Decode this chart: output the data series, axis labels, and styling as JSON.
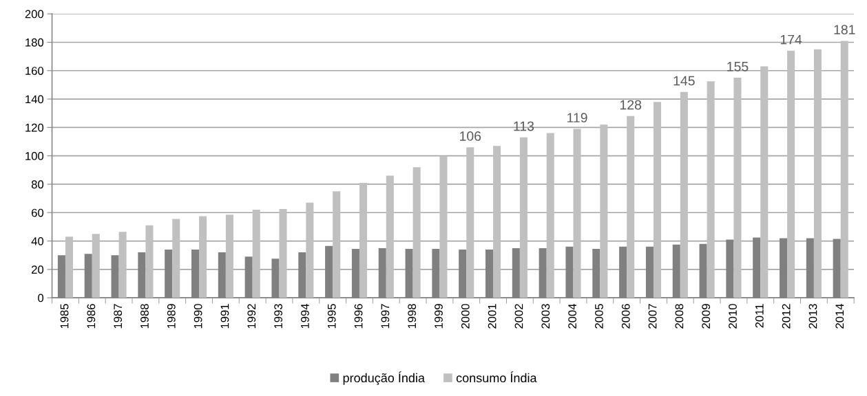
{
  "chart_data": {
    "type": "bar",
    "categories": [
      "1985",
      "1986",
      "1987",
      "1988",
      "1989",
      "1990",
      "1991",
      "1992",
      "1993",
      "1994",
      "1995",
      "1996",
      "1997",
      "1998",
      "1999",
      "2000",
      "2001",
      "2002",
      "2003",
      "2004",
      "2005",
      "2006",
      "2007",
      "2008",
      "2009",
      "2010",
      "2011",
      "2012",
      "2013",
      "2014"
    ],
    "series": [
      {
        "name": "produção Índia",
        "color": "#808080",
        "values": [
          30,
          31,
          30,
          32,
          34,
          34,
          32,
          29,
          27.5,
          32,
          36.5,
          34.5,
          35,
          34.5,
          34.5,
          34,
          34,
          35,
          35,
          36,
          34.5,
          36,
          36,
          37.5,
          38,
          41,
          42.5,
          42,
          42,
          41.5
        ]
      },
      {
        "name": "consumo Índia",
        "color": "#c0c0c0",
        "values": [
          43,
          45,
          46.5,
          51,
          55.5,
          57.5,
          58.5,
          62,
          62.5,
          67,
          75,
          81,
          86,
          92,
          100,
          106,
          107,
          113,
          116,
          119,
          122,
          128,
          138,
          145,
          152.5,
          155,
          163,
          174,
          175,
          181
        ],
        "value_labels": [
          null,
          null,
          null,
          null,
          null,
          null,
          null,
          null,
          null,
          null,
          null,
          null,
          null,
          null,
          null,
          "106",
          null,
          "113",
          null,
          "119",
          null,
          "128",
          null,
          "145",
          null,
          "155",
          null,
          "174",
          null,
          "181"
        ]
      }
    ],
    "ylim": [
      0,
      200
    ],
    "yticks": [
      0,
      20,
      40,
      60,
      80,
      100,
      120,
      140,
      160,
      180,
      200
    ],
    "grid": "y",
    "legend": "bottom"
  }
}
